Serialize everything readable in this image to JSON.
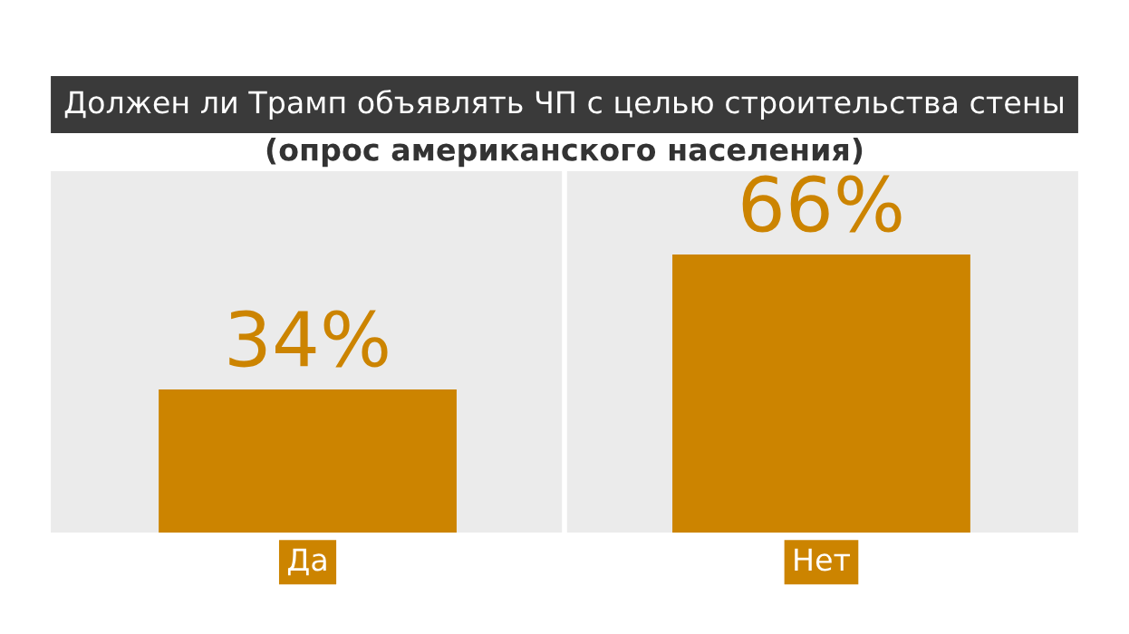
{
  "chart_data": {
    "type": "bar",
    "title": "Должен ли Трамп объявлять ЧП с целью строительства стены",
    "subtitle": "(опрос американского населения)",
    "categories": [
      "Да",
      "Нет"
    ],
    "values": [
      34,
      66
    ],
    "value_labels": [
      "34%",
      "66%"
    ],
    "color": "#cc8400"
  }
}
